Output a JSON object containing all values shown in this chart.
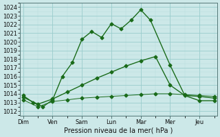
{
  "background_color": "#cce8e8",
  "grid_major_color": "#99cccc",
  "grid_minor_color": "#b8dddd",
  "line_color": "#1a6b1a",
  "xlabel": "Pression niveau de la mer( hPa )",
  "days": [
    "Dim",
    "Ven",
    "Sam",
    "Lun",
    "Mar",
    "Mer",
    "Jeu"
  ],
  "day_positions": [
    0,
    1,
    2,
    3,
    4,
    5,
    6
  ],
  "xlim": [
    -0.1,
    6.6
  ],
  "ylim": [
    1011.5,
    1024.5
  ],
  "yticks": [
    1012,
    1013,
    1014,
    1015,
    1016,
    1017,
    1018,
    1019,
    1020,
    1021,
    1022,
    1023,
    1024
  ],
  "series1_x": [
    0,
    0.33,
    0.67,
    1.0,
    1.33,
    1.67,
    2.0,
    2.33,
    2.67,
    3.0,
    3.33,
    3.67,
    4.0,
    4.33,
    5.0,
    5.5,
    6.0,
    6.5
  ],
  "series1_y": [
    1013.8,
    1013.0,
    1012.5,
    1013.3,
    1016.0,
    1017.6,
    1020.3,
    1021.2,
    1020.5,
    1022.1,
    1021.5,
    1022.5,
    1023.7,
    1022.5,
    1017.3,
    1013.8,
    1013.2,
    1013.2
  ],
  "series2_x": [
    0,
    0.5,
    1.0,
    1.5,
    2.0,
    2.5,
    3.0,
    3.5,
    4.0,
    4.5,
    5.0,
    5.5,
    6.0,
    6.5
  ],
  "series2_y": [
    1013.6,
    1012.8,
    1013.4,
    1014.2,
    1015.0,
    1015.8,
    1016.5,
    1017.2,
    1017.8,
    1018.3,
    1015.0,
    1013.8,
    1013.7,
    1013.5
  ],
  "series3_x": [
    0,
    0.5,
    1.0,
    1.5,
    2.0,
    2.5,
    3.0,
    3.5,
    4.0,
    4.5,
    5.0,
    5.5,
    6.0,
    6.5
  ],
  "series3_y": [
    1013.3,
    1012.5,
    1013.1,
    1013.3,
    1013.5,
    1013.6,
    1013.7,
    1013.8,
    1013.9,
    1014.0,
    1014.0,
    1013.9,
    1013.8,
    1013.7
  ],
  "linewidth": 1.0,
  "marker_size": 2.5
}
